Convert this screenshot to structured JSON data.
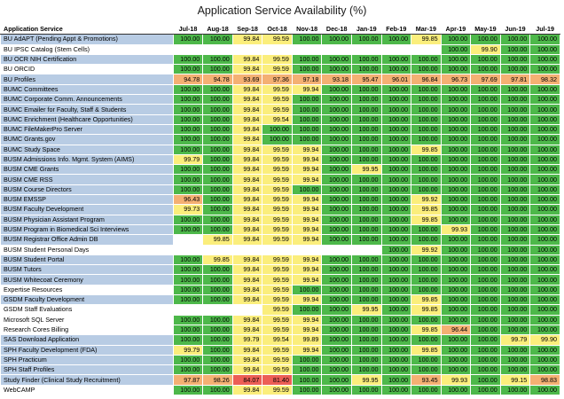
{
  "title": "Application Service Availability (%)",
  "chart_data": {
    "type": "table",
    "title": "Application Service Availability (%)",
    "row_header": "Application Service",
    "months": [
      "Jul-18",
      "Aug-18",
      "Sep-18",
      "Oct-18",
      "Nov-18",
      "Dec-18",
      "Jan-19",
      "Feb-19",
      "Mar-19",
      "Apr-19",
      "May-19",
      "Jun-19",
      "Jul-19"
    ],
    "color_scale": {
      "100": "#4db84a",
      "99-99.99": "#fbee7c",
      "90-98.99": "#f4b073",
      "below-90": "#ec5e55"
    },
    "rows": [
      {
        "service": "BU AdAPT (Pending Appt & Promotions)",
        "band": "blue",
        "values": [
          100.0,
          100.0,
          99.84,
          99.59,
          100.0,
          100.0,
          100.0,
          100.0,
          99.85,
          100.0,
          100.0,
          100.0,
          100.0
        ]
      },
      {
        "service": "BU IPSC Catalog (Stem Cells)",
        "band": "white",
        "values": [
          null,
          null,
          null,
          null,
          null,
          null,
          null,
          null,
          null,
          100.0,
          99.9,
          100.0,
          100.0
        ]
      },
      {
        "service": "BU OCR NIH Certification",
        "band": "blue",
        "values": [
          100.0,
          100.0,
          99.84,
          99.59,
          100.0,
          100.0,
          100.0,
          100.0,
          100.0,
          100.0,
          100.0,
          100.0,
          100.0
        ]
      },
      {
        "service": "BU ORCID",
        "band": "white",
        "values": [
          100.0,
          100.0,
          99.84,
          99.59,
          100.0,
          100.0,
          100.0,
          100.0,
          100.0,
          100.0,
          100.0,
          100.0,
          100.0
        ]
      },
      {
        "service": "BU Profiles",
        "band": "blue",
        "values": [
          94.78,
          94.78,
          93.69,
          97.36,
          97.18,
          93.18,
          95.47,
          96.01,
          96.84,
          96.73,
          97.69,
          97.81,
          98.32
        ]
      },
      {
        "service": "BUMC Committees",
        "band": "blue",
        "values": [
          100.0,
          100.0,
          99.84,
          99.59,
          99.94,
          100.0,
          100.0,
          100.0,
          100.0,
          100.0,
          100.0,
          100.0,
          100.0
        ]
      },
      {
        "service": "BUMC Corporate Comm. Announcements",
        "band": "blue",
        "values": [
          100.0,
          100.0,
          99.84,
          99.59,
          100.0,
          100.0,
          100.0,
          100.0,
          100.0,
          100.0,
          100.0,
          100.0,
          100.0
        ]
      },
      {
        "service": "BUMC Emailer for Faculty, Staff & Students",
        "band": "blue",
        "values": [
          100.0,
          100.0,
          99.84,
          99.59,
          100.0,
          100.0,
          100.0,
          100.0,
          100.0,
          100.0,
          100.0,
          100.0,
          100.0
        ]
      },
      {
        "service": "BUMC Enrichment (Healthcare Opportunities)",
        "band": "blue",
        "values": [
          100.0,
          100.0,
          99.84,
          99.54,
          100.0,
          100.0,
          100.0,
          100.0,
          100.0,
          100.0,
          100.0,
          100.0,
          100.0
        ]
      },
      {
        "service": "BUMC FileMakerPro Server",
        "band": "blue",
        "values": [
          100.0,
          100.0,
          99.84,
          100.0,
          100.0,
          100.0,
          100.0,
          100.0,
          100.0,
          100.0,
          100.0,
          100.0,
          100.0
        ]
      },
      {
        "service": "BUMC Grants.gov",
        "band": "blue",
        "values": [
          100.0,
          100.0,
          99.84,
          100.0,
          100.0,
          100.0,
          100.0,
          100.0,
          100.0,
          100.0,
          100.0,
          100.0,
          100.0
        ]
      },
      {
        "service": "BUMC Study Space",
        "band": "blue",
        "values": [
          100.0,
          100.0,
          99.84,
          99.59,
          99.94,
          100.0,
          100.0,
          100.0,
          99.85,
          100.0,
          100.0,
          100.0,
          100.0
        ]
      },
      {
        "service": "BUSM Admissions Info. Mgmt. System (AIMS)",
        "band": "blue",
        "values": [
          99.79,
          100.0,
          99.84,
          99.59,
          99.94,
          100.0,
          100.0,
          100.0,
          100.0,
          100.0,
          100.0,
          100.0,
          100.0
        ]
      },
      {
        "service": "BUSM CME Grants",
        "band": "blue",
        "values": [
          100.0,
          100.0,
          99.84,
          99.59,
          99.94,
          100.0,
          99.95,
          100.0,
          100.0,
          100.0,
          100.0,
          100.0,
          100.0
        ]
      },
      {
        "service": "BUSM CME RSS",
        "band": "blue",
        "values": [
          100.0,
          100.0,
          99.84,
          99.59,
          99.94,
          100.0,
          100.0,
          100.0,
          100.0,
          100.0,
          100.0,
          100.0,
          100.0
        ]
      },
      {
        "service": "BUSM Course Directors",
        "band": "blue",
        "values": [
          100.0,
          100.0,
          99.84,
          99.59,
          100.0,
          100.0,
          100.0,
          100.0,
          100.0,
          100.0,
          100.0,
          100.0,
          100.0
        ]
      },
      {
        "service": "BUSM EMSSP",
        "band": "blue",
        "values": [
          96.43,
          100.0,
          99.84,
          99.59,
          99.94,
          100.0,
          100.0,
          100.0,
          99.92,
          100.0,
          100.0,
          100.0,
          100.0
        ]
      },
      {
        "service": "BUSM Faculty Development",
        "band": "blue",
        "values": [
          99.73,
          100.0,
          99.84,
          99.59,
          99.94,
          100.0,
          100.0,
          100.0,
          99.85,
          100.0,
          100.0,
          100.0,
          100.0
        ]
      },
      {
        "service": "BUSM Physician Assistant Program",
        "band": "blue",
        "values": [
          100.0,
          100.0,
          99.84,
          99.59,
          99.94,
          100.0,
          100.0,
          100.0,
          99.85,
          100.0,
          100.0,
          100.0,
          100.0
        ]
      },
      {
        "service": "BUSM Program in Biomedical Sci Interviews",
        "band": "blue",
        "values": [
          100.0,
          100.0,
          99.84,
          99.59,
          99.94,
          100.0,
          100.0,
          100.0,
          100.0,
          99.93,
          100.0,
          100.0,
          100.0
        ]
      },
      {
        "service": "BUSM Registrar Office Admin DB",
        "band": "blue",
        "values": [
          null,
          99.85,
          99.84,
          99.59,
          99.94,
          100.0,
          100.0,
          100.0,
          100.0,
          100.0,
          100.0,
          100.0,
          100.0
        ]
      },
      {
        "service": "BUSM Student Personal Days",
        "band": "white",
        "values": [
          null,
          null,
          null,
          null,
          null,
          null,
          null,
          100.0,
          99.92,
          100.0,
          100.0,
          100.0,
          100.0
        ]
      },
      {
        "service": "BUSM Student Portal",
        "band": "blue",
        "values": [
          100.0,
          99.85,
          99.84,
          99.59,
          99.94,
          100.0,
          100.0,
          100.0,
          100.0,
          100.0,
          100.0,
          100.0,
          100.0
        ]
      },
      {
        "service": "BUSM Tutors",
        "band": "blue",
        "values": [
          100.0,
          100.0,
          99.84,
          99.59,
          99.94,
          100.0,
          100.0,
          100.0,
          100.0,
          100.0,
          100.0,
          100.0,
          100.0
        ]
      },
      {
        "service": "BUSM Whitecoat Ceremony",
        "band": "blue",
        "values": [
          100.0,
          100.0,
          99.84,
          99.59,
          99.94,
          100.0,
          100.0,
          100.0,
          100.0,
          100.0,
          100.0,
          100.0,
          100.0
        ]
      },
      {
        "service": "Expertise Resources",
        "band": "white",
        "values": [
          100.0,
          100.0,
          99.84,
          99.59,
          100.0,
          100.0,
          100.0,
          100.0,
          100.0,
          100.0,
          100.0,
          100.0,
          100.0
        ]
      },
      {
        "service": "GSDM Faculty Development",
        "band": "blue",
        "values": [
          100.0,
          100.0,
          99.84,
          99.59,
          99.94,
          100.0,
          100.0,
          100.0,
          99.85,
          100.0,
          100.0,
          100.0,
          100.0
        ]
      },
      {
        "service": "GSDM Staff Evaluations",
        "band": "white",
        "values": [
          null,
          null,
          null,
          99.59,
          100.0,
          100.0,
          99.95,
          100.0,
          99.85,
          100.0,
          100.0,
          100.0,
          100.0
        ]
      },
      {
        "service": "Microsoft SQL Server",
        "band": "white",
        "values": [
          100.0,
          100.0,
          99.84,
          99.59,
          99.94,
          100.0,
          100.0,
          100.0,
          100.0,
          100.0,
          100.0,
          100.0,
          100.0
        ]
      },
      {
        "service": "Research Cores Billing",
        "band": "white",
        "values": [
          100.0,
          100.0,
          99.84,
          99.59,
          99.94,
          100.0,
          100.0,
          100.0,
          99.85,
          96.44,
          100.0,
          100.0,
          100.0
        ]
      },
      {
        "service": "SAS Download Application",
        "band": "blue",
        "values": [
          100.0,
          100.0,
          99.79,
          99.54,
          99.89,
          100.0,
          100.0,
          100.0,
          100.0,
          100.0,
          100.0,
          99.79,
          99.9
        ]
      },
      {
        "service": "SPH Faculty Development (FDA)",
        "band": "blue",
        "values": [
          99.79,
          100.0,
          99.84,
          99.59,
          99.94,
          100.0,
          100.0,
          100.0,
          99.85,
          100.0,
          100.0,
          100.0,
          100.0
        ]
      },
      {
        "service": "SPH Practicum",
        "band": "blue",
        "values": [
          100.0,
          100.0,
          99.84,
          99.59,
          100.0,
          100.0,
          100.0,
          100.0,
          100.0,
          100.0,
          100.0,
          100.0,
          100.0
        ]
      },
      {
        "service": "SPH Staff Profiles",
        "band": "blue",
        "values": [
          100.0,
          100.0,
          99.84,
          99.59,
          100.0,
          100.0,
          100.0,
          100.0,
          100.0,
          100.0,
          100.0,
          100.0,
          100.0
        ]
      },
      {
        "service": "Study Finder (Clinical Study Recruitment)",
        "band": "blue",
        "values": [
          97.87,
          98.26,
          84.07,
          81.4,
          100.0,
          100.0,
          99.95,
          100.0,
          93.45,
          99.93,
          100.0,
          99.15,
          98.83
        ]
      },
      {
        "service": "WebCAMP",
        "band": "white",
        "values": [
          100.0,
          100.0,
          99.84,
          99.59,
          100.0,
          100.0,
          100.0,
          100.0,
          100.0,
          100.0,
          100.0,
          100.0,
          100.0
        ]
      }
    ]
  }
}
